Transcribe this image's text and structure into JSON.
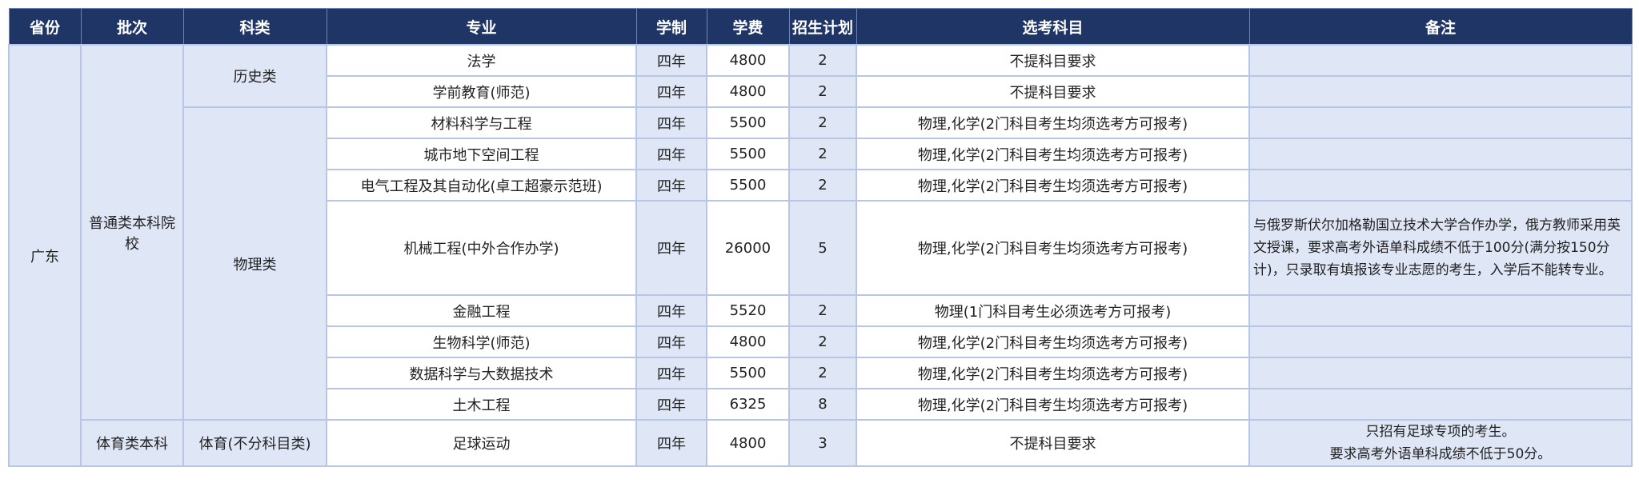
{
  "headers": [
    "省份",
    "批次",
    "科类",
    "专业",
    "学制",
    "学费",
    "招生计划",
    "选考科目",
    "备注"
  ],
  "province": "广东",
  "batches": [
    "普通类本科院校",
    "体育类本科"
  ],
  "categories": [
    "历史类",
    "物理类",
    "体育(不分科目类)"
  ],
  "rows": [
    {
      "major": "法学",
      "years": "四年",
      "fee": "4800",
      "plan": "2",
      "subjects": "不提科目要求",
      "note": ""
    },
    {
      "major": "学前教育(师范)",
      "years": "四年",
      "fee": "4800",
      "plan": "2",
      "subjects": "不提科目要求",
      "note": ""
    },
    {
      "major": "材料科学与工程",
      "years": "四年",
      "fee": "5500",
      "plan": "2",
      "subjects": "物理,化学(2门科目考生均须选考方可报考)",
      "note": ""
    },
    {
      "major": "城市地下空间工程",
      "years": "四年",
      "fee": "5500",
      "plan": "2",
      "subjects": "物理,化学(2门科目考生均须选考方可报考)",
      "note": ""
    },
    {
      "major": "电气工程及其自动化(卓工超豪示范班)",
      "years": "四年",
      "fee": "5500",
      "plan": "2",
      "subjects": "物理,化学(2门科目考生均须选考方可报考)",
      "note": ""
    },
    {
      "major": "机械工程(中外合作办学)",
      "years": "四年",
      "fee": "26000",
      "plan": "5",
      "subjects": "物理,化学(2门科目考生均须选考方可报考)",
      "note": "与俄罗斯伏尔加格勒国立技术大学合作办学，俄方教师采用英文授课，要求高考外语单科成绩不低于100分(满分按150分计)，只录取有填报该专业志愿的考生，入学后不能转专业。"
    },
    {
      "major": "金融工程",
      "years": "四年",
      "fee": "5520",
      "plan": "2",
      "subjects": "物理(1门科目考生必须选考方可报考)",
      "note": ""
    },
    {
      "major": "生物科学(师范)",
      "years": "四年",
      "fee": "4800",
      "plan": "2",
      "subjects": "物理,化学(2门科目考生均须选考方可报考)",
      "note": ""
    },
    {
      "major": "数据科学与大数据技术",
      "years": "四年",
      "fee": "5500",
      "plan": "2",
      "subjects": "物理,化学(2门科目考生均须选考方可报考)",
      "note": ""
    },
    {
      "major": "土木工程",
      "years": "四年",
      "fee": "6325",
      "plan": "8",
      "subjects": "物理,化学(2门科目考生均须选考方可报考)",
      "note": ""
    },
    {
      "major": "足球运动",
      "years": "四年",
      "fee": "4800",
      "plan": "3",
      "subjects": "不提科目要求",
      "note": "",
      "note_lines": [
        "只招有足球专项的考生。",
        "要求高考外语单科成绩不低于50分。"
      ]
    }
  ]
}
